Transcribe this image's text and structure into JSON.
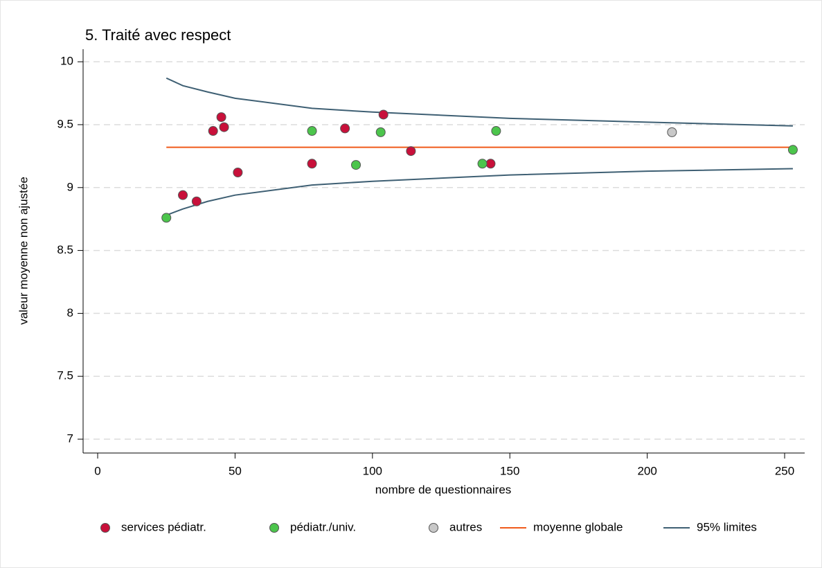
{
  "chart_data": {
    "type": "scatter",
    "title": "5. Traité avec respect",
    "x_label": "nombre de questionnaires",
    "y_label": "valeur moyenne non ajustée",
    "xlim": [
      -5.3,
      257.3
    ],
    "ylim": [
      6.89,
      10.1
    ],
    "xticks": [
      0,
      50,
      100,
      150,
      200,
      250
    ],
    "yticks": [
      7,
      7.5,
      8,
      8.5,
      9,
      9.5,
      10
    ],
    "grid": true,
    "legend": "bottom",
    "series": [
      {
        "name": "services pédiatr.",
        "type": "scatter",
        "color": "#c8103a",
        "x": [
          31,
          36,
          42,
          45,
          46,
          51,
          78,
          90,
          104,
          114,
          143
        ],
        "values": [
          8.94,
          8.89,
          9.45,
          9.56,
          9.48,
          9.12,
          9.19,
          9.47,
          9.58,
          9.29,
          9.19
        ]
      },
      {
        "name": "pédiatr./univ.",
        "type": "scatter",
        "color": "#4cc54c",
        "x": [
          25,
          78,
          94,
          103,
          140,
          145,
          253
        ],
        "values": [
          8.76,
          9.45,
          9.18,
          9.44,
          9.19,
          9.45,
          9.3
        ]
      },
      {
        "name": "autres",
        "type": "scatter",
        "color": "#c8c8c8",
        "x": [
          209
        ],
        "values": [
          9.44
        ]
      },
      {
        "name": "moyenne globale",
        "type": "line",
        "color": "#f05a1a",
        "x": [
          25,
          253
        ],
        "values": [
          9.32,
          9.32
        ]
      },
      {
        "name": "95% limites",
        "type": "line",
        "color": "#3e5f73",
        "x": [
          25,
          31,
          40,
          50,
          78,
          100,
          150,
          200,
          253
        ],
        "values": [
          9.87,
          9.81,
          9.76,
          9.71,
          9.63,
          9.6,
          9.55,
          9.52,
          9.49
        ],
        "lower": [
          8.78,
          8.83,
          8.89,
          8.94,
          9.02,
          9.05,
          9.1,
          9.13,
          9.15
        ]
      }
    ]
  }
}
